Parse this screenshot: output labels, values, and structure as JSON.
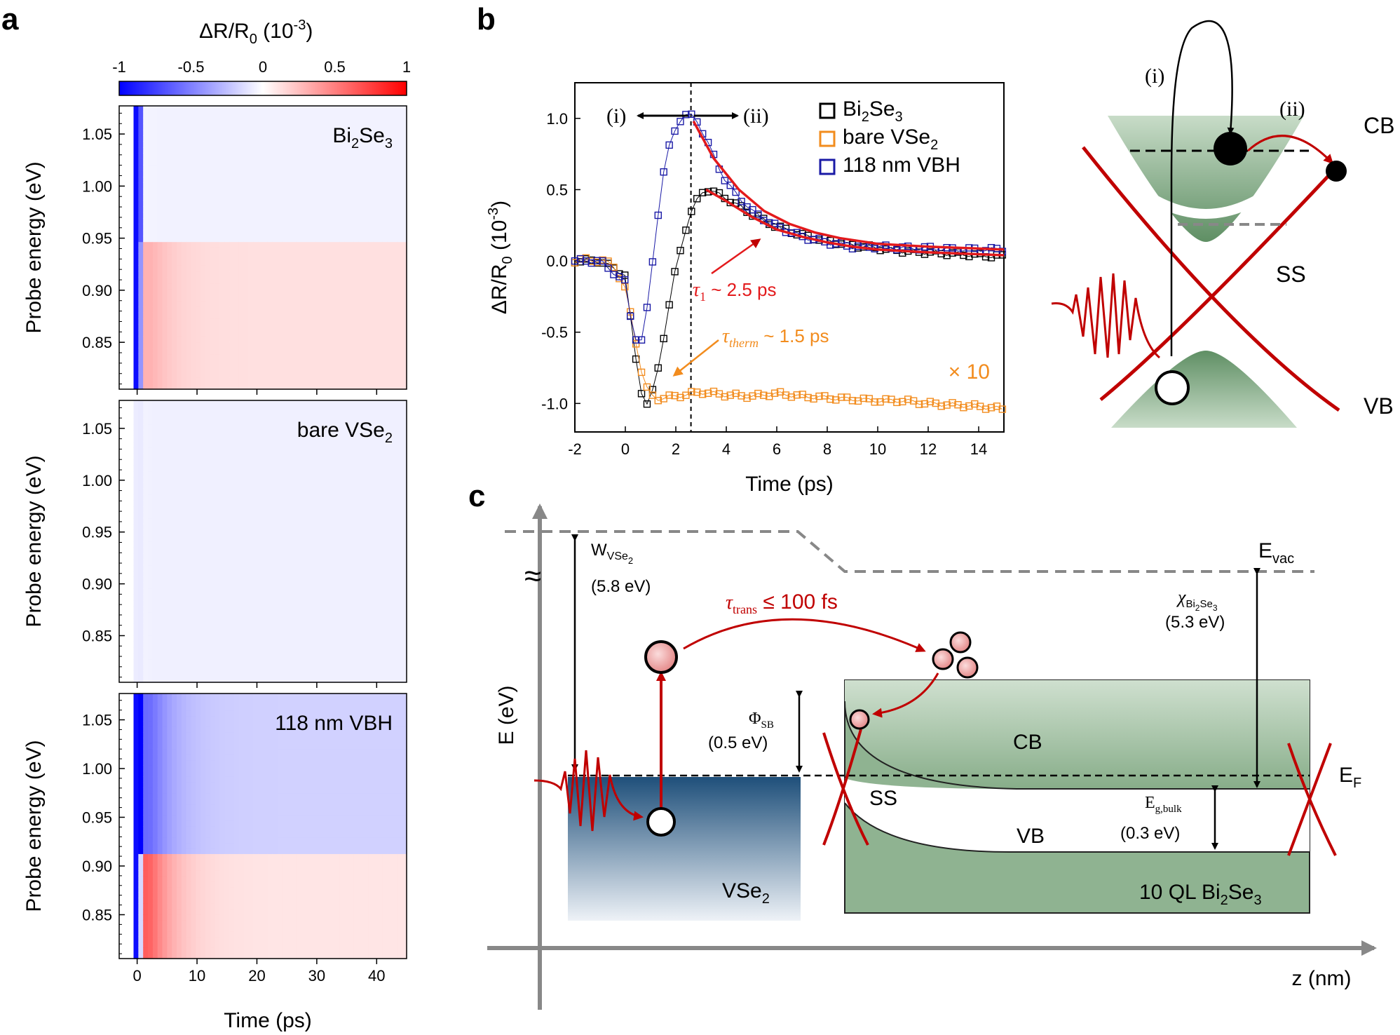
{
  "panel_labels": {
    "a": "a",
    "b": "b",
    "c": "c"
  },
  "chart_data": [
    {
      "id": "a",
      "type": "heatmap",
      "colorbar": {
        "title": "ΔR/R",
        "title_sub": "0",
        "title_unit": " (10",
        "title_exp": "-3",
        "title_close": ")",
        "range": [
          -1,
          1
        ],
        "ticks": [
          "-1",
          "-0.5",
          "0",
          "0.5",
          "1"
        ],
        "colors": {
          "neg": "#0000ff",
          "mid": "#ffffff",
          "pos": "#ff0000"
        }
      },
      "xlabel": "Time (ps)",
      "ylabel": "Probe energy (eV)",
      "xlim": [
        -3,
        45
      ],
      "ylim": [
        0.805,
        1.077
      ],
      "xticks": [
        "0",
        "10",
        "20",
        "30",
        "40"
      ],
      "xtick_values": [
        0,
        10,
        20,
        30,
        40
      ],
      "yticks": [
        "0.85",
        "0.90",
        "0.95",
        "1.00",
        "1.05"
      ],
      "ytick_values": [
        0.85,
        0.9,
        0.95,
        1.0,
        1.05
      ],
      "maps": [
        {
          "label": "Bi",
          "label_sub": "2",
          "label_mid": "Se",
          "label_sub2": "3",
          "energy_bands": [
            {
              "from": 0.805,
              "to": 0.945,
              "early_peak": 0.35,
              "late": 0.12
            },
            {
              "from": 0.945,
              "to": 1.077,
              "early_peak": 0.0,
              "late": -0.05
            }
          ],
          "initial_dip": -1.0
        },
        {
          "label": "bare VSe",
          "label_sub": "2",
          "label_mid": "",
          "label_sub2": "",
          "energy_bands": [
            {
              "from": 0.805,
              "to": 1.077,
              "early_peak": 0.0,
              "late": -0.06
            }
          ],
          "initial_dip": -0.08
        },
        {
          "label": "118 nm VBH",
          "label_sub": "",
          "label_mid": "",
          "label_sub2": "",
          "energy_bands": [
            {
              "from": 0.805,
              "to": 0.91,
              "early_peak": 0.95,
              "late": 0.1
            },
            {
              "from": 0.91,
              "to": 1.077,
              "early_peak": -0.75,
              "late": -0.18
            }
          ],
          "initial_dip": -1.0
        }
      ]
    },
    {
      "id": "b",
      "type": "scatter",
      "xlabel": "Time (ps)",
      "ylabel": "ΔR/R",
      "ylabel_sub": "0",
      "ylabel_unit": " (10",
      "ylabel_exp": "-3",
      "ylabel_close": ")",
      "xlim": [
        -2,
        15
      ],
      "ylim": [
        -1.2,
        1.25
      ],
      "xticks": [
        "-2",
        "0",
        "2",
        "4",
        "6",
        "8",
        "10",
        "12",
        "14"
      ],
      "xtick_values": [
        -2,
        0,
        2,
        4,
        6,
        8,
        10,
        12,
        14
      ],
      "yticks": [
        "-1.0",
        "-0.5",
        "0.0",
        "0.5",
        "1.0"
      ],
      "ytick_values": [
        -1.0,
        -0.5,
        0.0,
        0.5,
        1.0
      ],
      "vline_x": 2.6,
      "series": [
        {
          "name": "Bi",
          "name_sub": "2",
          "name_mid": "Se",
          "name_sub2": "3",
          "color": "#000000",
          "x": [
            -2,
            -1,
            0,
            0.3,
            0.6,
            0.9,
            1.2,
            1.6,
            2.0,
            2.5,
            3.0,
            3.3,
            4,
            5,
            6,
            7,
            8,
            9,
            10,
            11,
            12,
            13,
            14,
            15
          ],
          "y": [
            0.0,
            0.0,
            -0.1,
            -0.55,
            -0.9,
            -1.02,
            -0.85,
            -0.45,
            -0.05,
            0.3,
            0.48,
            0.5,
            0.44,
            0.33,
            0.24,
            0.18,
            0.14,
            0.11,
            0.09,
            0.07,
            0.06,
            0.05,
            0.04,
            0.03
          ]
        },
        {
          "name": "bare VSe",
          "name_sub": "2",
          "name_mid": "",
          "name_sub2": "",
          "color": "#f28c1e",
          "x": [
            -2,
            -1.5,
            -1,
            -0.5,
            0,
            0.3,
            0.6,
            0.9,
            1.2,
            1.5,
            2,
            3,
            4,
            5,
            6,
            7,
            8,
            9,
            10,
            11,
            12,
            13,
            14,
            15
          ],
          "y": [
            0.0,
            0.01,
            0.0,
            -0.02,
            -0.2,
            -0.45,
            -0.75,
            -0.92,
            -0.97,
            -0.96,
            -0.95,
            -0.92,
            -0.94,
            -0.95,
            -0.93,
            -0.95,
            -0.96,
            -0.97,
            -0.98,
            -0.98,
            -1.0,
            -1.01,
            -1.02,
            -1.04
          ]
        },
        {
          "name": "118 nm VBH",
          "name_sub": "",
          "name_mid": "",
          "name_sub2": "",
          "color": "#1a1aa6",
          "x": [
            -2,
            -1,
            0,
            0.3,
            0.6,
            0.9,
            1.2,
            1.5,
            1.8,
            2.1,
            2.5,
            2.8,
            3.2,
            4,
            5,
            6,
            7,
            8,
            9,
            10,
            11,
            12,
            13,
            14,
            15
          ],
          "y": [
            0.0,
            0.0,
            -0.15,
            -0.5,
            -0.6,
            -0.3,
            0.2,
            0.6,
            0.85,
            0.98,
            1.03,
            1.0,
            0.85,
            0.55,
            0.35,
            0.24,
            0.17,
            0.13,
            0.1,
            0.1,
            0.09,
            0.09,
            0.08,
            0.08,
            0.08
          ]
        }
      ],
      "fits": [
        {
          "name": "tau1 fit VBH",
          "color": "#e31a1c",
          "x": [
            2.7,
            3.5,
            4.5,
            5.5,
            6.5,
            7.5,
            8.5,
            10,
            12,
            15
          ],
          "y": [
            0.98,
            0.72,
            0.5,
            0.35,
            0.26,
            0.2,
            0.16,
            0.12,
            0.1,
            0.08
          ]
        },
        {
          "name": "tau1 fit Bi2Se3",
          "color": "#e31a1c",
          "x": [
            3.2,
            4,
            5,
            6,
            7,
            8,
            9,
            10,
            12,
            15
          ],
          "y": [
            0.5,
            0.42,
            0.31,
            0.22,
            0.17,
            0.13,
            0.1,
            0.08,
            0.06,
            0.04
          ]
        }
      ],
      "annotations": {
        "phase_i": "(i)",
        "phase_ii": "(ii)",
        "tau1_symbol": "τ",
        "tau1_sub": "1",
        "tau1_value": " ~ 2.5 ps",
        "tau_therm_symbol": "τ",
        "tau_therm_sub": "therm",
        "tau_therm_value": " ~ 1.5 ps",
        "scale_factor": "× 10"
      }
    }
  ],
  "schematic_b": {
    "step_i": "(i)",
    "step_ii": "(ii)",
    "cb": "CB",
    "vb": "VB",
    "ss": "SS",
    "colors": {
      "band": "#6f9a73",
      "cone": "#c00000"
    }
  },
  "diagram_c": {
    "e_axis": "E (eV)",
    "z_axis": "z (nm)",
    "e_vac": "E",
    "e_vac_sub": "vac",
    "e_f": "E",
    "e_f_sub": "F",
    "w_label": "W",
    "w_sub": "VSe",
    "w_sub2": "2",
    "w_value": "(5.8 eV)",
    "tau_trans": "τ",
    "tau_trans_sub": "trans",
    "tau_trans_value": " ≤ 100 fs",
    "phi_sb": "Φ",
    "phi_sb_sub": "SB",
    "phi_sb_value": "(0.5 eV)",
    "chi": "χ",
    "chi_sub": "Bi",
    "chi_sub2": "2",
    "chi_sub3": "Se",
    "chi_sub4": "3",
    "chi_value": "(5.3 eV)",
    "eg": "E",
    "eg_sub": "g,bulk",
    "eg_value": "(0.3 eV)",
    "cb": "CB",
    "vb": "VB",
    "ss": "SS",
    "vse2": "VSe",
    "vse2_sub": "2",
    "bi2se3_prefix": "10 QL Bi",
    "bi2se3_sub": "2",
    "bi2se3_mid": "Se",
    "bi2se3_sub2": "3",
    "break_symbol": "≈",
    "colors": {
      "vse2_top": "#1e4f7a",
      "bise_fill": "#a8c4a9",
      "arrow": "#c00000"
    }
  }
}
